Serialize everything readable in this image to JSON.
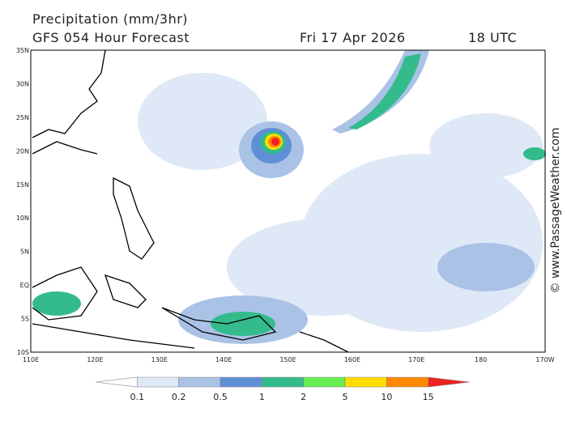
{
  "header": {
    "title": "Precipitation (mm/3hr)",
    "model": "GFS 054 Hour Forecast",
    "date": "Fri 17 Apr 2026",
    "time": "18 UTC"
  },
  "watermark": "© www.PassageWeather.com",
  "lat_labels": [
    "35N",
    "30N",
    "25N",
    "20N",
    "15N",
    "10N",
    "5N",
    "EQ",
    "5S",
    "10S"
  ],
  "lon_labels": [
    "110E",
    "120E",
    "130E",
    "140E",
    "150E",
    "160E",
    "170E",
    "180",
    "170W"
  ],
  "colorbar": {
    "labels": [
      "0.1",
      "0.2",
      "0.5",
      "1",
      "2",
      "5",
      "10",
      "15"
    ],
    "colors": [
      "#ffffff",
      "#dfe8f6",
      "#a9c2e6",
      "#5f8fd6",
      "#33bb8c",
      "#66ee55",
      "#ffdd00",
      "#ff8800",
      "#ee2222"
    ]
  }
}
